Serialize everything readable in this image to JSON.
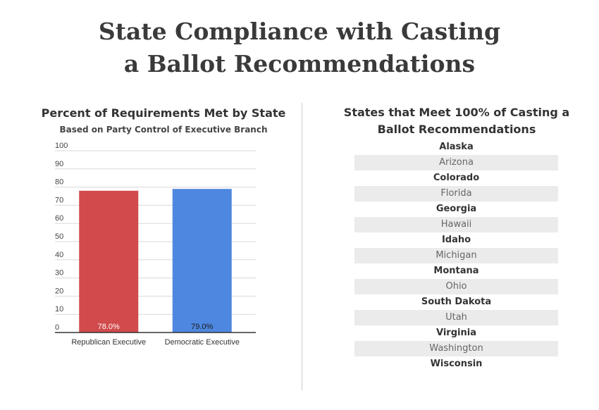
{
  "title_line1": "State Compliance with Casting",
  "title_line2": "a Ballot Recommendations",
  "chart_data": {
    "type": "bar",
    "title": "Percent of Requirements Met by State",
    "subtitle": "Based on Party Control of Executive Branch",
    "categories": [
      "Republican Executive",
      "Democratic Executive"
    ],
    "values": [
      78.0,
      79.0
    ],
    "value_labels": [
      "78.0%",
      "79.0%"
    ],
    "colors": [
      "#d14a4c",
      "#4e87e0"
    ],
    "label_colors": [
      "#ffffff",
      "#1a1a1a"
    ],
    "ylim": [
      0,
      100
    ],
    "yticks": [
      0,
      10,
      20,
      30,
      40,
      50,
      60,
      70,
      80,
      90,
      100
    ],
    "grid": true,
    "xlabel": "",
    "ylabel": ""
  },
  "states_panel": {
    "title": "States that Meet 100% of Casting a Ballot Recommendations",
    "states": [
      "Alaska",
      "Arizona",
      "Colorado",
      "Florida",
      "Georgia",
      "Hawaii",
      "Idaho",
      "Michigan",
      "Montana",
      "Ohio",
      "South Dakota",
      "Utah",
      "Virginia",
      "Washington",
      "Wisconsin"
    ]
  }
}
